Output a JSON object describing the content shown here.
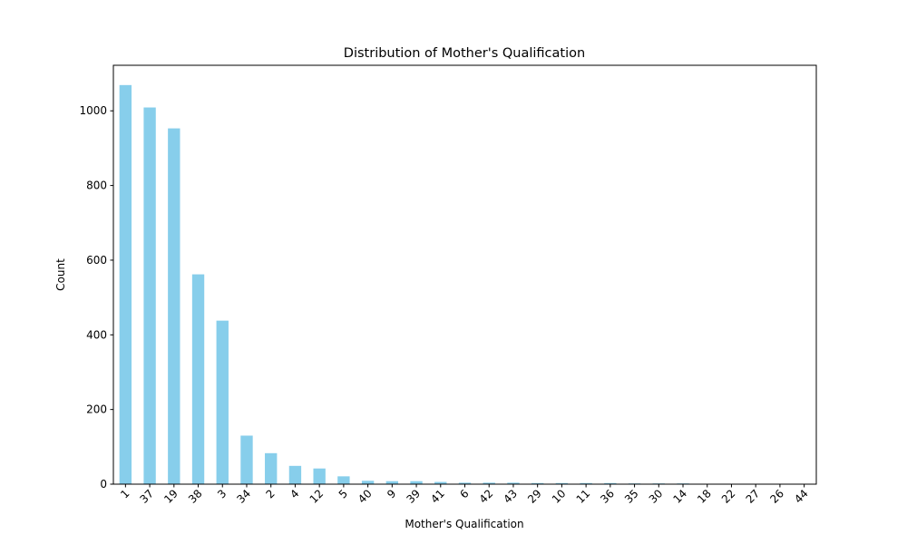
{
  "chart_data": {
    "type": "bar",
    "title": "Distribution of Mother's Qualification",
    "xlabel": "Mother's Qualification",
    "ylabel": "Count",
    "categories": [
      "1",
      "37",
      "19",
      "38",
      "3",
      "34",
      "2",
      "4",
      "12",
      "5",
      "40",
      "9",
      "39",
      "41",
      "6",
      "42",
      "43",
      "29",
      "10",
      "11",
      "36",
      "35",
      "30",
      "14",
      "18",
      "22",
      "27",
      "26",
      "44"
    ],
    "values": [
      1069,
      1009,
      953,
      562,
      438,
      130,
      83,
      49,
      42,
      21,
      9,
      8,
      8,
      6,
      4,
      4,
      4,
      3,
      3,
      3,
      3,
      2,
      2,
      2,
      1,
      1,
      1,
      1,
      1
    ],
    "ylim": [
      0,
      1122
    ],
    "yticks": [
      0,
      200,
      400,
      600,
      800,
      1000
    ],
    "grid": false,
    "bar_color": "#87ceeb"
  }
}
